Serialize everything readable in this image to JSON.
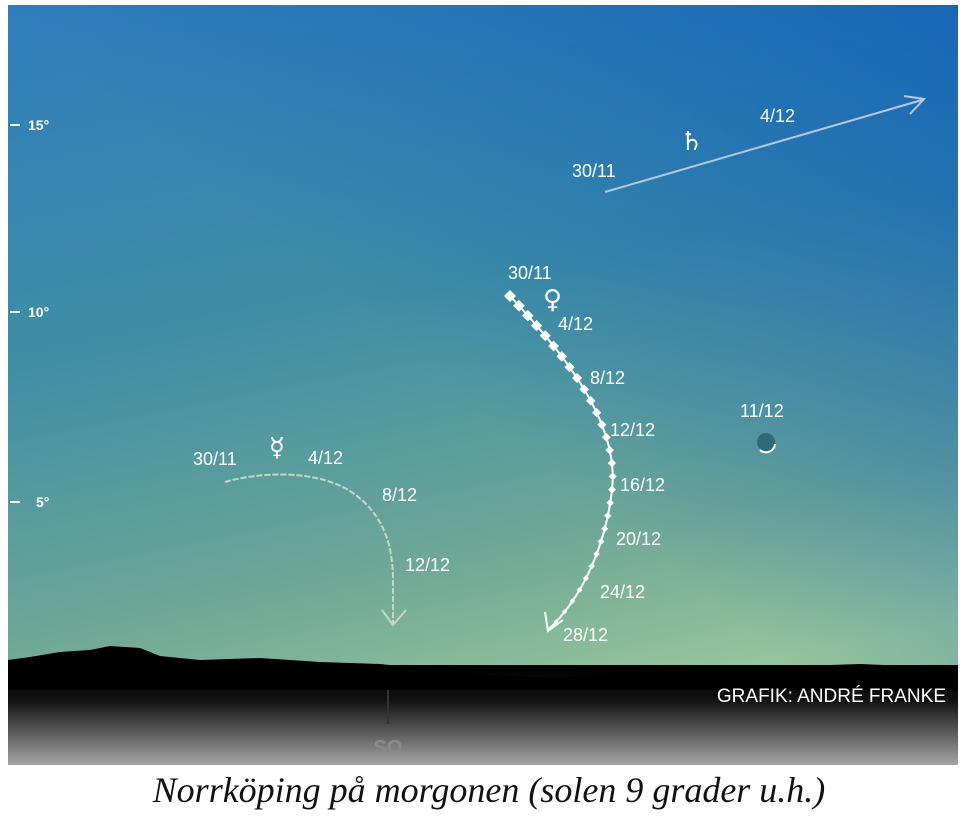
{
  "axis": {
    "ticks": [
      "15°",
      "10°",
      "5°"
    ]
  },
  "planets": [
    {
      "symbol": "♄",
      "dates": [
        "30/11",
        "4/12"
      ]
    },
    {
      "symbol": "♀",
      "dates": [
        "30/11",
        "4/12",
        "8/12",
        "12/12",
        "16/12",
        "20/12",
        "24/12",
        "28/12"
      ]
    },
    {
      "symbol": "☿",
      "dates": [
        "30/11",
        "4/12",
        "8/12",
        "12/12"
      ]
    }
  ],
  "moon": {
    "date": "11/12"
  },
  "direction": "SO",
  "credit": "GRAFIK: ANDRÉ FRANKE",
  "caption": "Norrköping på morgonen (solen 9 grader u.h.)"
}
